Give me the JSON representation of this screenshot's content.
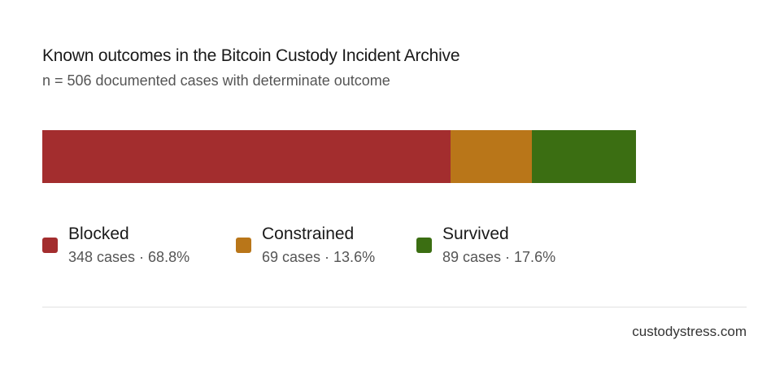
{
  "title": "Known outcomes in the Bitcoin Custody Incident Archive",
  "subtitle": "n = 506 documented cases with determinate outcome",
  "footer": "custodystress.com",
  "chart_data": {
    "type": "bar",
    "orientation": "horizontal-stacked",
    "total": 506,
    "series": [
      {
        "name": "Blocked",
        "value": 348,
        "percent": 68.8,
        "detail": "348 cases · 68.8%",
        "color": "#a32d2e"
      },
      {
        "name": "Constrained",
        "value": 69,
        "percent": 13.6,
        "detail": "69 cases · 13.6%",
        "color": "#b97619"
      },
      {
        "name": "Survived",
        "value": 89,
        "percent": 17.6,
        "detail": "89 cases · 17.6%",
        "color": "#3b6e12"
      }
    ],
    "legend": "bottom",
    "grid": false
  }
}
